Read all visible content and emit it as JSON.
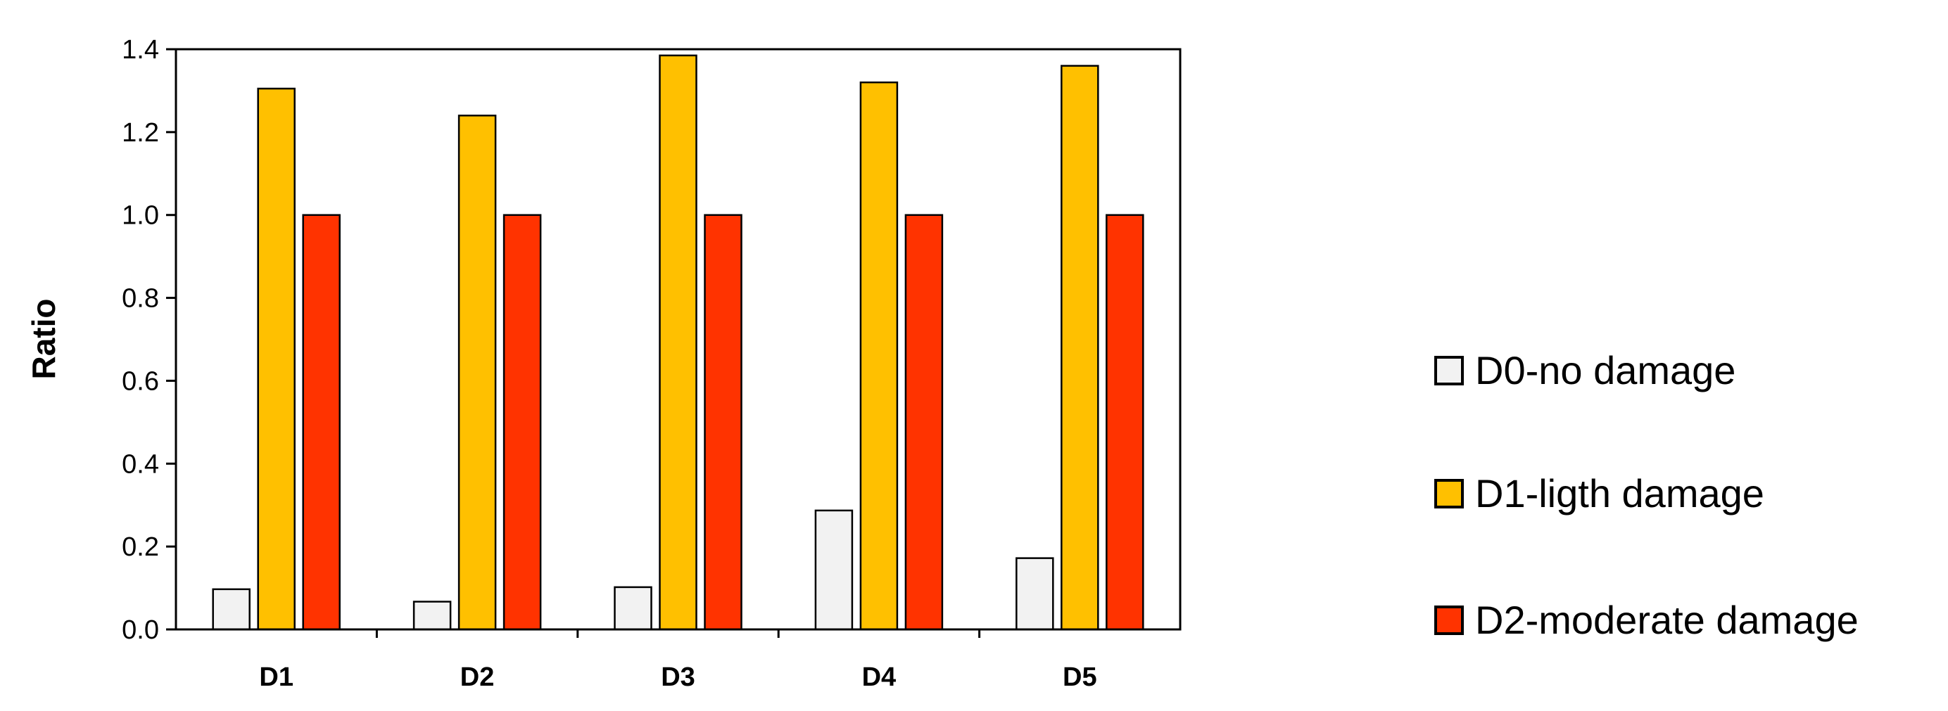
{
  "chart_data": {
    "type": "bar",
    "categories": [
      "D1",
      "D2",
      "D3",
      "D4",
      "D5"
    ],
    "series": [
      {
        "name": "D0-no damage",
        "color": "#F2F2F2",
        "values": [
          0.097,
          0.067,
          0.102,
          0.287,
          0.172
        ]
      },
      {
        "name": "D1-ligth damage",
        "color": "#FFC000",
        "values": [
          1.305,
          1.24,
          1.385,
          1.32,
          1.36
        ]
      },
      {
        "name": "D2-moderate damage",
        "color": "#FF3300",
        "values": [
          1.0,
          1.0,
          1.0,
          1.0,
          1.0
        ]
      }
    ],
    "ylabel": "Ratio",
    "xlabel": "",
    "ylim": [
      0,
      1.4
    ],
    "yticks": [
      "0.0",
      "0.2",
      "0.4",
      "0.6",
      "0.8",
      "1.0",
      "1.2",
      "1.4"
    ],
    "grid": false,
    "legend_position": "right"
  }
}
